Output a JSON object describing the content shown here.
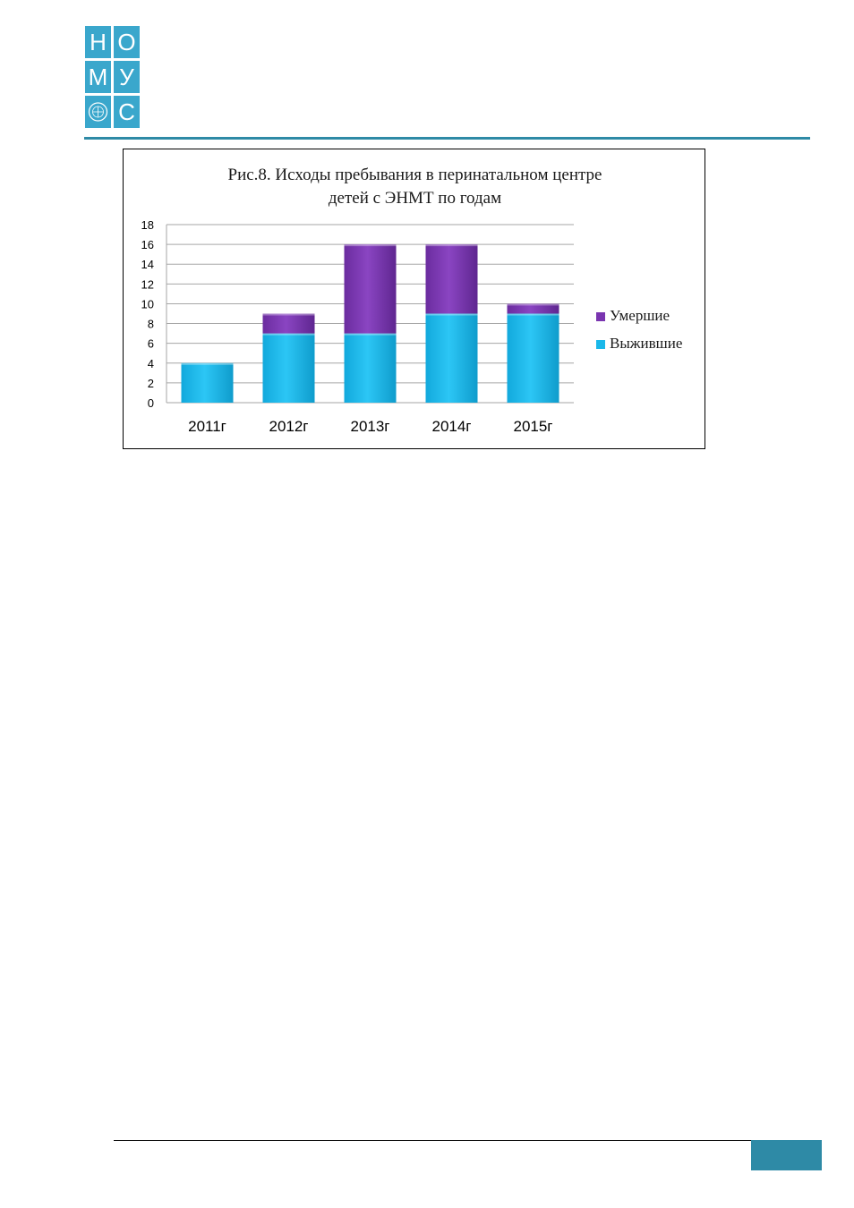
{
  "logo": {
    "letters": [
      "Н",
      "О",
      "М",
      "У",
      "",
      "С"
    ],
    "color": "#3aa7cc"
  },
  "chart_data": {
    "type": "bar",
    "stacked": true,
    "title": [
      "Рис.8. Исходы пребывания в перинатальном центре",
      "детей с ЭНМТ по годам"
    ],
    "categories": [
      "2011г",
      "2012г",
      "2013г",
      "2014г",
      "2015г"
    ],
    "series": [
      {
        "name": "Выжившие",
        "values": [
          4,
          7,
          7,
          9,
          9
        ],
        "color": "#1ab8ea"
      },
      {
        "name": "Умершие",
        "values": [
          0,
          2,
          9,
          7,
          1
        ],
        "color": "#7a35b0"
      }
    ],
    "legend_order": [
      "Умершие",
      "Выжившие"
    ],
    "ylim": [
      0,
      18
    ],
    "yticks": [
      0,
      2,
      4,
      6,
      8,
      10,
      12,
      14,
      16,
      18
    ],
    "grid": true,
    "legend_position": "right"
  },
  "colors": {
    "accent": "#2e8aa6"
  }
}
